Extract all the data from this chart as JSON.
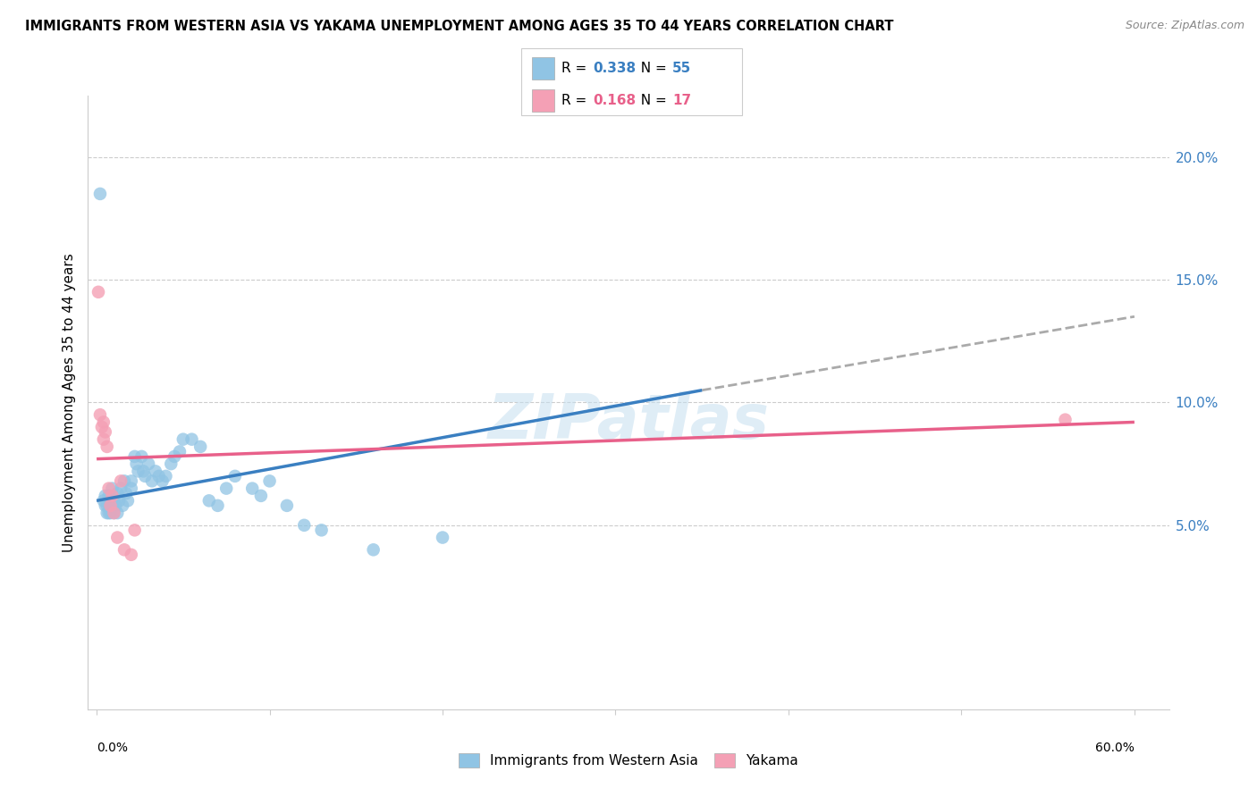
{
  "title": "IMMIGRANTS FROM WESTERN ASIA VS YAKAMA UNEMPLOYMENT AMONG AGES 35 TO 44 YEARS CORRELATION CHART",
  "source": "Source: ZipAtlas.com",
  "ylabel": "Unemployment Among Ages 35 to 44 years",
  "right_yticks": [
    0.05,
    0.1,
    0.15,
    0.2
  ],
  "right_yticklabels": [
    "5.0%",
    "10.0%",
    "15.0%",
    "20.0%"
  ],
  "legend_label1": "Immigrants from Western Asia",
  "legend_label2": "Yakama",
  "R1": "0.338",
  "N1": "55",
  "R2": "0.168",
  "N2": "17",
  "blue_color": "#90c4e4",
  "pink_color": "#f4a0b5",
  "blue_line_color": "#3a7fc1",
  "pink_line_color": "#e8608a",
  "dashed_color": "#aaaaaa",
  "blue_scatter": [
    [
      0.002,
      0.185
    ],
    [
      0.004,
      0.06
    ],
    [
      0.005,
      0.058
    ],
    [
      0.005,
      0.062
    ],
    [
      0.006,
      0.055
    ],
    [
      0.006,
      0.058
    ],
    [
      0.007,
      0.062
    ],
    [
      0.007,
      0.055
    ],
    [
      0.008,
      0.06
    ],
    [
      0.008,
      0.055
    ],
    [
      0.009,
      0.058
    ],
    [
      0.009,
      0.065
    ],
    [
      0.01,
      0.06
    ],
    [
      0.01,
      0.055
    ],
    [
      0.011,
      0.058
    ],
    [
      0.012,
      0.055
    ],
    [
      0.012,
      0.063
    ],
    [
      0.013,
      0.06
    ],
    [
      0.014,
      0.065
    ],
    [
      0.015,
      0.058
    ],
    [
      0.016,
      0.068
    ],
    [
      0.017,
      0.063
    ],
    [
      0.018,
      0.06
    ],
    [
      0.02,
      0.068
    ],
    [
      0.02,
      0.065
    ],
    [
      0.022,
      0.078
    ],
    [
      0.023,
      0.075
    ],
    [
      0.024,
      0.072
    ],
    [
      0.026,
      0.078
    ],
    [
      0.027,
      0.072
    ],
    [
      0.028,
      0.07
    ],
    [
      0.03,
      0.075
    ],
    [
      0.032,
      0.068
    ],
    [
      0.034,
      0.072
    ],
    [
      0.036,
      0.07
    ],
    [
      0.038,
      0.068
    ],
    [
      0.04,
      0.07
    ],
    [
      0.043,
      0.075
    ],
    [
      0.045,
      0.078
    ],
    [
      0.048,
      0.08
    ],
    [
      0.05,
      0.085
    ],
    [
      0.055,
      0.085
    ],
    [
      0.06,
      0.082
    ],
    [
      0.065,
      0.06
    ],
    [
      0.07,
      0.058
    ],
    [
      0.075,
      0.065
    ],
    [
      0.08,
      0.07
    ],
    [
      0.09,
      0.065
    ],
    [
      0.095,
      0.062
    ],
    [
      0.1,
      0.068
    ],
    [
      0.11,
      0.058
    ],
    [
      0.12,
      0.05
    ],
    [
      0.13,
      0.048
    ],
    [
      0.16,
      0.04
    ],
    [
      0.2,
      0.045
    ]
  ],
  "pink_scatter": [
    [
      0.001,
      0.145
    ],
    [
      0.002,
      0.095
    ],
    [
      0.003,
      0.09
    ],
    [
      0.004,
      0.085
    ],
    [
      0.004,
      0.092
    ],
    [
      0.005,
      0.088
    ],
    [
      0.006,
      0.082
    ],
    [
      0.007,
      0.065
    ],
    [
      0.008,
      0.058
    ],
    [
      0.009,
      0.062
    ],
    [
      0.01,
      0.055
    ],
    [
      0.012,
      0.045
    ],
    [
      0.014,
      0.068
    ],
    [
      0.016,
      0.04
    ],
    [
      0.02,
      0.038
    ],
    [
      0.022,
      0.048
    ],
    [
      0.56,
      0.093
    ]
  ],
  "xlim": [
    -0.005,
    0.62
  ],
  "ylim": [
    -0.025,
    0.225
  ],
  "blue_solid_line": [
    0.0,
    0.06,
    0.35,
    0.105
  ],
  "blue_dashed_line": [
    0.35,
    0.105,
    0.6,
    0.135
  ],
  "pink_line": [
    0.0,
    0.077,
    0.6,
    0.092
  ]
}
